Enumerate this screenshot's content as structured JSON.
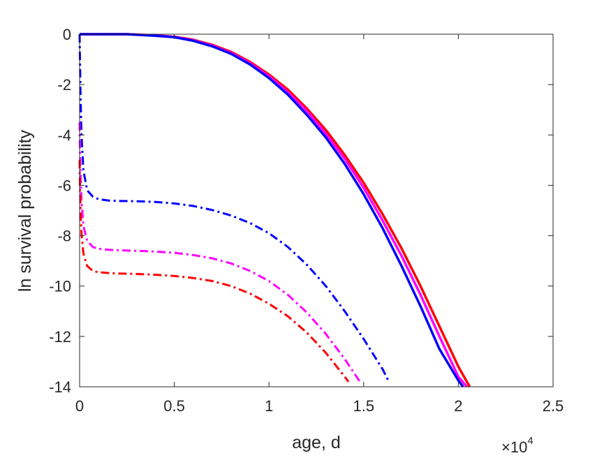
{
  "chart_data": {
    "type": "line",
    "xlabel": "age, d",
    "ylabel": "ln survival probability",
    "x_multiplier_base": "×10",
    "x_multiplier_exp": "4",
    "xlim": [
      0,
      2.5
    ],
    "ylim": [
      -14,
      0
    ],
    "x_ticks": [
      "0",
      "0.5",
      "1",
      "1.5",
      "2",
      "2.5"
    ],
    "y_ticks": [
      "0",
      "-2",
      "-4",
      "-6",
      "-8",
      "-10",
      "-12",
      "-14"
    ],
    "x_tick_values": [
      0,
      0.5,
      1,
      1.5,
      2,
      2.5
    ],
    "y_tick_values": [
      0,
      -2,
      -4,
      -6,
      -8,
      -10,
      -12,
      -14
    ],
    "grid": false,
    "series": [
      {
        "color": "#ff0000",
        "style": "solid",
        "x": [
          0,
          0.25,
          0.4,
          0.5,
          0.6,
          0.7,
          0.8,
          0.9,
          1.0,
          1.1,
          1.2,
          1.3,
          1.4,
          1.5,
          1.6,
          1.7,
          1.8,
          1.9,
          2.0,
          2.06
        ],
        "y": [
          0,
          0,
          -0.05,
          -0.1,
          -0.22,
          -0.42,
          -0.7,
          -1.1,
          -1.6,
          -2.2,
          -2.95,
          -3.8,
          -4.8,
          -5.9,
          -7.15,
          -8.5,
          -10.0,
          -11.6,
          -13.2,
          -14.0
        ]
      },
      {
        "color": "#ff00ff",
        "style": "solid",
        "x": [
          0,
          0.25,
          0.4,
          0.5,
          0.6,
          0.7,
          0.8,
          0.9,
          1.0,
          1.1,
          1.2,
          1.3,
          1.4,
          1.5,
          1.6,
          1.7,
          1.8,
          1.9,
          2.0,
          2.045
        ],
        "y": [
          0,
          0,
          -0.05,
          -0.11,
          -0.24,
          -0.45,
          -0.74,
          -1.15,
          -1.67,
          -2.3,
          -3.05,
          -3.95,
          -4.95,
          -6.1,
          -7.4,
          -8.8,
          -10.35,
          -12.0,
          -13.6,
          -14.0
        ]
      },
      {
        "color": "#0000ff",
        "style": "solid",
        "x": [
          0,
          0.25,
          0.4,
          0.5,
          0.6,
          0.7,
          0.8,
          0.9,
          1.0,
          1.1,
          1.2,
          1.3,
          1.4,
          1.5,
          1.6,
          1.7,
          1.8,
          1.9,
          2.0,
          2.025
        ],
        "y": [
          0,
          0,
          -0.06,
          -0.12,
          -0.26,
          -0.48,
          -0.78,
          -1.2,
          -1.74,
          -2.4,
          -3.2,
          -4.1,
          -5.15,
          -6.35,
          -7.7,
          -9.2,
          -10.8,
          -12.5,
          -13.75,
          -14.0
        ]
      },
      {
        "color": "#0000ff",
        "style": "dashdot",
        "x": [
          0.0,
          0.002,
          0.005,
          0.01,
          0.02,
          0.04,
          0.07,
          0.1,
          0.15,
          0.2,
          0.3,
          0.4,
          0.5,
          0.6,
          0.7,
          0.8,
          0.9,
          1.0,
          1.1,
          1.2,
          1.3,
          1.4,
          1.5,
          1.6,
          1.63
        ],
        "y": [
          0,
          -1.0,
          -2.5,
          -4.0,
          -5.4,
          -6.2,
          -6.45,
          -6.55,
          -6.6,
          -6.62,
          -6.63,
          -6.66,
          -6.72,
          -6.82,
          -6.98,
          -7.2,
          -7.5,
          -7.9,
          -8.45,
          -9.15,
          -10.0,
          -11.0,
          -12.1,
          -13.3,
          -13.75
        ]
      },
      {
        "color": "#ff00ff",
        "style": "dashdot",
        "x": [
          0.0,
          0.002,
          0.005,
          0.01,
          0.02,
          0.04,
          0.07,
          0.1,
          0.15,
          0.2,
          0.3,
          0.4,
          0.5,
          0.6,
          0.7,
          0.8,
          0.9,
          1.0,
          1.1,
          1.2,
          1.3,
          1.4,
          1.48
        ],
        "y": [
          -3.5,
          -4.5,
          -5.6,
          -6.6,
          -7.6,
          -8.2,
          -8.45,
          -8.52,
          -8.56,
          -8.58,
          -8.6,
          -8.63,
          -8.68,
          -8.77,
          -8.9,
          -9.1,
          -9.4,
          -9.8,
          -10.35,
          -11.05,
          -11.9,
          -12.9,
          -13.8
        ]
      },
      {
        "color": "#ff0000",
        "style": "dashdot",
        "x": [
          0.0,
          0.002,
          0.005,
          0.01,
          0.02,
          0.04,
          0.07,
          0.1,
          0.15,
          0.2,
          0.3,
          0.4,
          0.5,
          0.6,
          0.7,
          0.8,
          0.9,
          1.0,
          1.1,
          1.2,
          1.3,
          1.4,
          1.42
        ],
        "y": [
          -5.0,
          -6.0,
          -7.0,
          -7.9,
          -8.7,
          -9.2,
          -9.4,
          -9.45,
          -9.48,
          -9.5,
          -9.52,
          -9.55,
          -9.6,
          -9.68,
          -9.8,
          -10.0,
          -10.3,
          -10.7,
          -11.2,
          -11.85,
          -12.65,
          -13.6,
          -13.8
        ]
      }
    ]
  }
}
